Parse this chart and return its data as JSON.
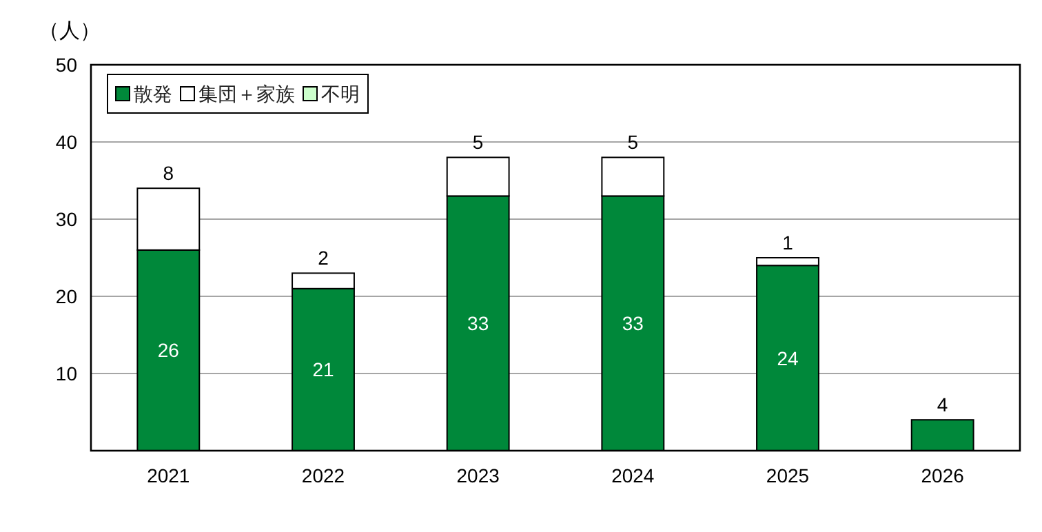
{
  "chart_data": {
    "type": "bar",
    "stacked": true,
    "ylabel": "（人）",
    "categories": [
      "2021",
      "2022",
      "2023",
      "2024",
      "2025",
      "2026"
    ],
    "series": [
      {
        "name": "散発",
        "color": "#00883a",
        "values": [
          26,
          21,
          33,
          33,
          24,
          4
        ]
      },
      {
        "name": "集団＋家族",
        "color": "#ffffff",
        "values": [
          8,
          2,
          5,
          5,
          1,
          null
        ]
      },
      {
        "name": "不明",
        "color": "#ccffcc",
        "values": [
          null,
          null,
          null,
          null,
          null,
          null
        ]
      }
    ],
    "ylim": [
      0,
      50
    ],
    "yticks": [
      10,
      20,
      30,
      40,
      50
    ],
    "grid": "y",
    "legend": "top left",
    "data_labels": true
  }
}
